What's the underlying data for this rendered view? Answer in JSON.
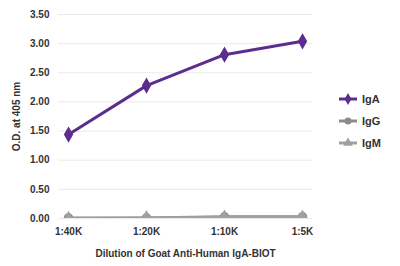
{
  "chart_data": {
    "type": "line",
    "x_label": "Dilution of Goat Anti-Human IgA-BIOT",
    "y_label": "O.D. at 405 nm",
    "categories": [
      "1:40K",
      "1:20K",
      "1:10K",
      "1:5K"
    ],
    "series": [
      {
        "name": "IgA",
        "color": "#5b2d90",
        "marker": "diamond",
        "values": [
          1.44,
          2.28,
          2.81,
          3.04
        ]
      },
      {
        "name": "IgG",
        "color": "#8c8c8c",
        "marker": "circle",
        "values": [
          0.01,
          0.01,
          0.03,
          0.03
        ]
      },
      {
        "name": "IgM",
        "color": "#a0a0a0",
        "marker": "triangle",
        "values": [
          0.0,
          0.01,
          0.02,
          0.02
        ]
      }
    ],
    "ylim": [
      0,
      3.5
    ],
    "yticks": [
      {
        "value": 0,
        "label": "0.00"
      },
      {
        "value": 0.5,
        "label": "0.50"
      },
      {
        "value": 1,
        "label": "1.00"
      },
      {
        "value": 1.5,
        "label": "1.50"
      },
      {
        "value": 2,
        "label": "2.00"
      },
      {
        "value": 2.5,
        "label": "2.50"
      },
      {
        "value": 3,
        "label": "3.00"
      },
      {
        "value": 3.5,
        "label": "3.50"
      }
    ],
    "grid": true,
    "legend": "right"
  }
}
